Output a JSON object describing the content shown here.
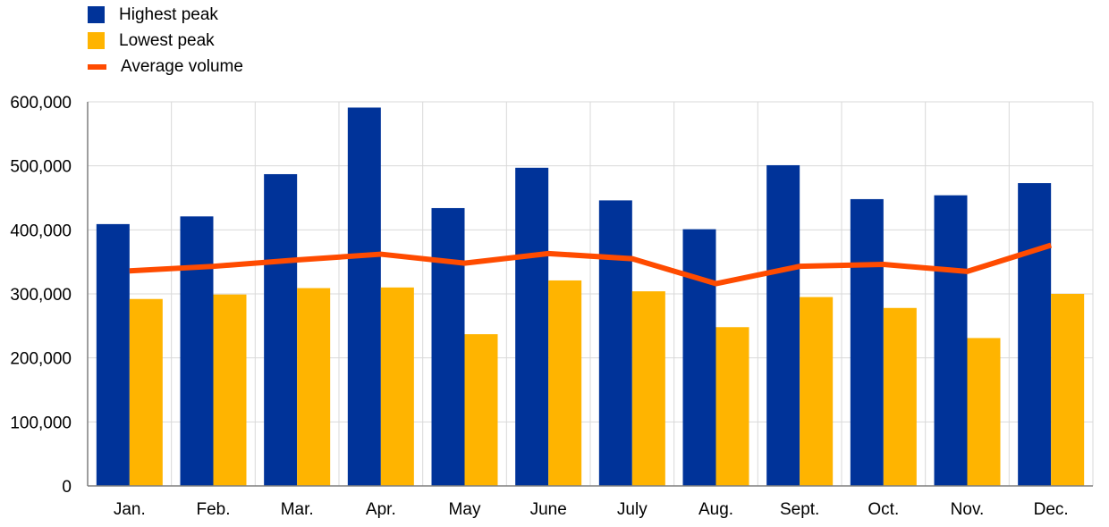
{
  "colors": {
    "highest": "#003399",
    "lowest": "#FFB400",
    "average": "#FF4B00",
    "grid": "#D9D9D9",
    "axis": "#7F7F7F"
  },
  "legend": {
    "items": [
      {
        "label": "Highest peak",
        "kind": "box",
        "color": "#003399",
        "icon": "square-swatch"
      },
      {
        "label": "Lowest peak",
        "kind": "box",
        "color": "#FFB400",
        "icon": "square-swatch"
      },
      {
        "label": "Average volume",
        "kind": "line",
        "color": "#FF4B00",
        "icon": "line-swatch"
      }
    ]
  },
  "chart_data": {
    "type": "bar",
    "title": "",
    "xlabel": "",
    "ylabel": "",
    "ylim": [
      0,
      600000
    ],
    "yticks": [
      0,
      100000,
      200000,
      300000,
      400000,
      500000,
      600000
    ],
    "ytick_labels": [
      "0",
      "100,000",
      "200,000",
      "300,000",
      "400,000",
      "500,000",
      "600,000"
    ],
    "grid": true,
    "legend_position": "top-left",
    "categories": [
      "Jan.",
      "Feb.",
      "Mar.",
      "Apr.",
      "May",
      "June",
      "July",
      "Aug.",
      "Sept.",
      "Oct.",
      "Nov.",
      "Dec."
    ],
    "series": [
      {
        "name": "Highest peak",
        "type": "bar",
        "color": "#003399",
        "values": [
          409000,
          421000,
          487000,
          591000,
          434000,
          497000,
          446000,
          401000,
          501000,
          448000,
          454000,
          473000
        ]
      },
      {
        "name": "Lowest peak",
        "type": "bar",
        "color": "#FFB400",
        "values": [
          292000,
          299000,
          309000,
          310000,
          237000,
          321000,
          304000,
          248000,
          295000,
          278000,
          231000,
          300000
        ]
      },
      {
        "name": "Average volume",
        "type": "line",
        "color": "#FF4B00",
        "values": [
          336000,
          343000,
          353000,
          362000,
          348000,
          363000,
          355000,
          316000,
          343000,
          346000,
          335000,
          376000
        ]
      }
    ]
  }
}
